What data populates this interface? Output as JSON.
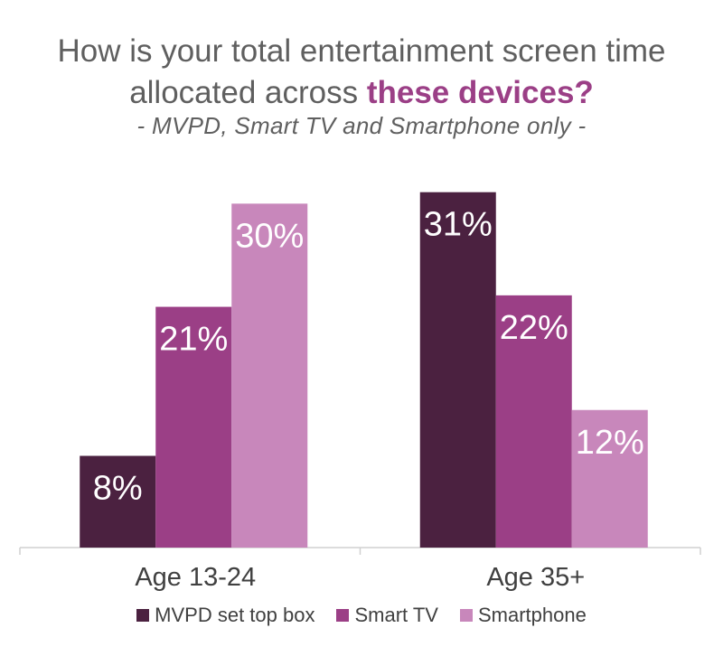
{
  "title_line1": "How is your total entertainment screen time",
  "title_line2_plain": "allocated across ",
  "title_line2_emph": "these devices?",
  "subtitle": "- MVPD, Smart TV and Smartphone only -",
  "chart_data": {
    "type": "bar",
    "categories": [
      "Age 13-24",
      "Age 35+"
    ],
    "series": [
      {
        "name": "MVPD set top box",
        "values": [
          8,
          31
        ],
        "labels": [
          "8%",
          "31%"
        ],
        "color": "#4b2140"
      },
      {
        "name": "Smart TV",
        "values": [
          21,
          22
        ],
        "labels": [
          "21%",
          "22%"
        ],
        "color": "#9b3f86"
      },
      {
        "name": "Smartphone",
        "values": [
          30,
          12
        ],
        "labels": [
          "30%",
          "12%"
        ],
        "color": "#c887bb"
      }
    ],
    "ylim": [
      0,
      32
    ],
    "grid": false,
    "legend": "bottom",
    "label_color": "#ffffff",
    "axis_color": "#d0d0d0"
  }
}
